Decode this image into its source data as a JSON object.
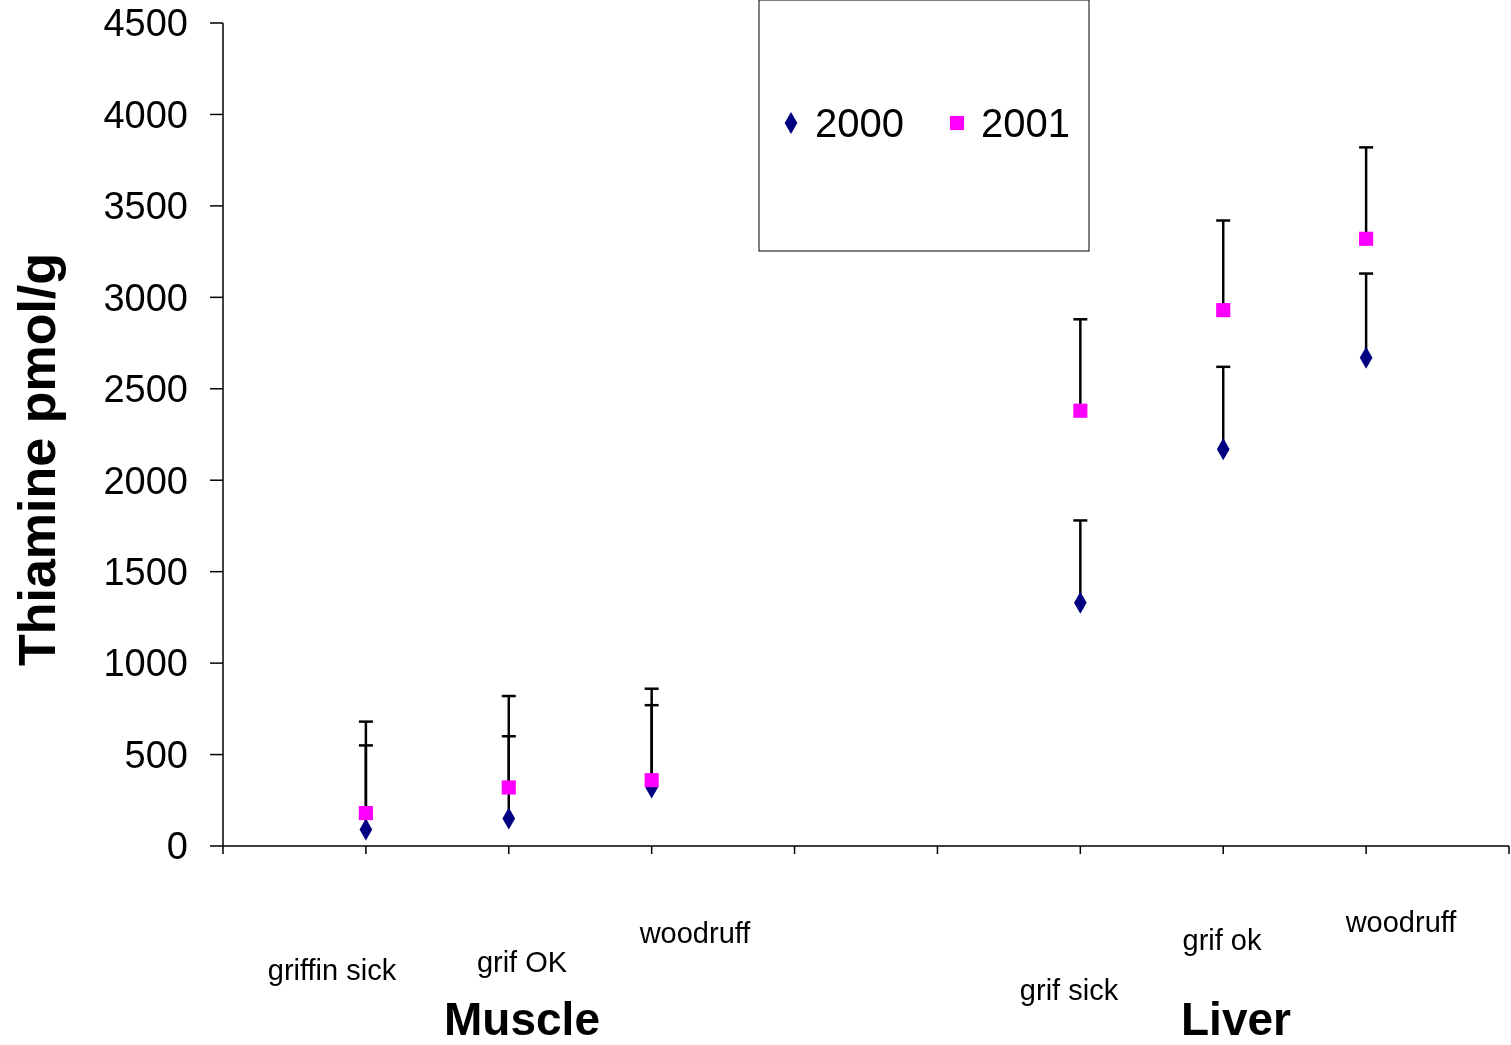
{
  "chart_data": {
    "type": "scatter",
    "ylabel": "Thiamine pmol/g",
    "categories": [
      null,
      null,
      null,
      null,
      null,
      null,
      null,
      null,
      null,
      null
    ],
    "ylim": [
      0,
      4500
    ],
    "yticks": [
      0,
      500,
      1000,
      1500,
      2000,
      2500,
      3000,
      3500,
      4000,
      4500
    ],
    "grid": false,
    "legend": "top",
    "series": [
      {
        "name": "2000",
        "color": "#000080",
        "marker": "diamond",
        "values": [
          null,
          90,
          150,
          320,
          null,
          null,
          1330,
          2170,
          2670,
          null
        ],
        "errors": [
          null,
          [
            90,
            550
          ],
          [
            150,
            600
          ],
          [
            320,
            770
          ],
          null,
          null,
          [
            1330,
            1780
          ],
          [
            2170,
            2620
          ],
          [
            2670,
            3130
          ],
          null
        ]
      },
      {
        "name": "2001",
        "color": "#ff00ff",
        "marker": "square",
        "values": [
          null,
          180,
          320,
          360,
          null,
          null,
          2380,
          2930,
          3320,
          null
        ],
        "errors": [
          null,
          [
            180,
            680
          ],
          [
            320,
            820
          ],
          [
            360,
            860
          ],
          null,
          null,
          [
            2380,
            2880
          ],
          [
            2930,
            3420
          ],
          [
            3320,
            3820
          ],
          null
        ]
      }
    ],
    "annotations": [
      "griffin sick",
      "grif OK",
      "woodruff",
      "grif sick",
      "grif ok",
      "woodruff",
      "Muscle",
      "Liver"
    ]
  }
}
